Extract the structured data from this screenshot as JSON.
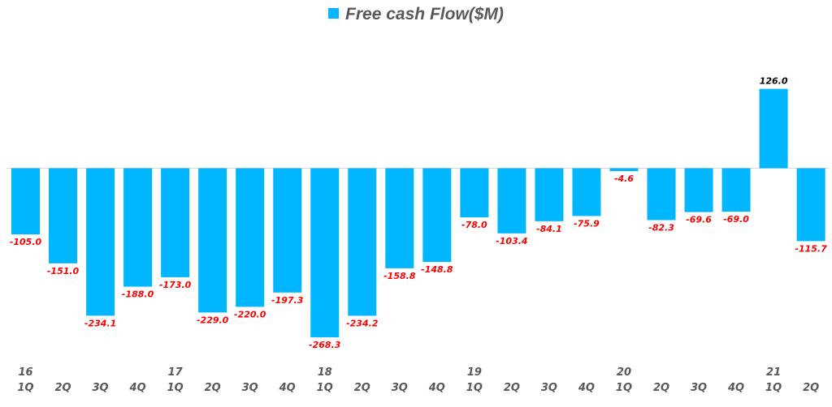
{
  "chart_data": {
    "type": "bar",
    "title": "",
    "xlabel": "",
    "ylabel": "",
    "ylim": [
      -290,
      165
    ],
    "grid": false,
    "legend": {
      "position": "top",
      "entries": [
        "Free cash Flow($M)"
      ]
    },
    "categories": [
      {
        "year": "16",
        "quarter": "1Q"
      },
      {
        "year": "",
        "quarter": "2Q"
      },
      {
        "year": "",
        "quarter": "3Q"
      },
      {
        "year": "",
        "quarter": "4Q"
      },
      {
        "year": "17",
        "quarter": "1Q"
      },
      {
        "year": "",
        "quarter": "2Q"
      },
      {
        "year": "",
        "quarter": "3Q"
      },
      {
        "year": "",
        "quarter": "4Q"
      },
      {
        "year": "18",
        "quarter": "1Q"
      },
      {
        "year": "",
        "quarter": "2Q"
      },
      {
        "year": "",
        "quarter": "3Q"
      },
      {
        "year": "",
        "quarter": "4Q"
      },
      {
        "year": "19",
        "quarter": "1Q"
      },
      {
        "year": "",
        "quarter": "2Q"
      },
      {
        "year": "",
        "quarter": "3Q"
      },
      {
        "year": "",
        "quarter": "4Q"
      },
      {
        "year": "20",
        "quarter": "1Q"
      },
      {
        "year": "",
        "quarter": "2Q"
      },
      {
        "year": "",
        "quarter": "3Q"
      },
      {
        "year": "",
        "quarter": "4Q"
      },
      {
        "year": "21",
        "quarter": "1Q"
      },
      {
        "year": "",
        "quarter": "2Q"
      }
    ],
    "series": [
      {
        "name": "Free cash Flow($M)",
        "color": "#00B6FF",
        "values": [
          -105.0,
          -151.0,
          -234.1,
          -188.0,
          -173.0,
          -229.0,
          -220.0,
          -197.3,
          -268.3,
          -234.2,
          -158.8,
          -148.8,
          -78.0,
          -103.4,
          -84.1,
          -75.9,
          -4.6,
          -82.3,
          -69.6,
          -69.0,
          126.0,
          -115.7
        ]
      }
    ],
    "label_colors": {
      "negative": "#FF0000",
      "positive": "#000000"
    }
  }
}
